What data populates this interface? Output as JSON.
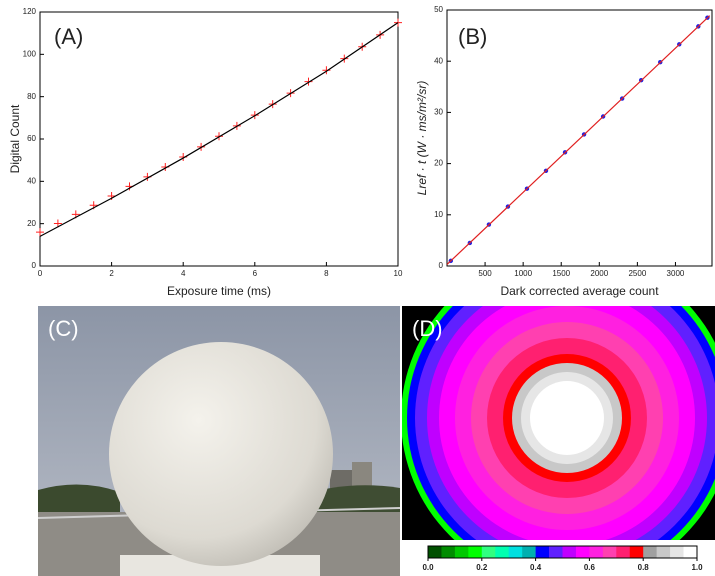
{
  "chart_data": [
    {
      "type": "scatter",
      "annotation": "(A)",
      "x_label": "Exposure time (ms)",
      "y_label": "Digital Count",
      "x": [
        0,
        0.5,
        1,
        1.5,
        2,
        2.5,
        3,
        3.5,
        4,
        4.5,
        5,
        5.5,
        6,
        6.5,
        7,
        7.5,
        8,
        8.5,
        9,
        9.5,
        10
      ],
      "values": [
        16,
        20.1,
        24.4,
        28.7,
        33.1,
        37.6,
        42.1,
        46.8,
        51.5,
        56.3,
        61.3,
        66.2,
        71.3,
        76.5,
        81.7,
        87.1,
        92.5,
        98.0,
        103.6,
        109.2,
        115
      ],
      "color": "#ff2020",
      "marker": "plus",
      "fit": {
        "x": [
          0,
          2,
          4,
          6,
          8,
          10
        ],
        "values": [
          14,
          32,
          51,
          71,
          92,
          115
        ],
        "color": "#000000"
      },
      "xlim": [
        0,
        10
      ],
      "ylim": [
        0,
        120
      ],
      "xticks": [
        0,
        2,
        4,
        6,
        8,
        10
      ],
      "yticks": [
        0,
        20,
        40,
        60,
        80,
        100,
        120
      ]
    },
    {
      "type": "scatter",
      "annotation": "(B)",
      "x_label": "Dark corrected average count",
      "y_label": "Lref · t (W · ms/m²/sr)",
      "x": [
        50,
        300,
        550,
        800,
        1050,
        1300,
        1550,
        1800,
        2050,
        2300,
        2550,
        2800,
        3050,
        3300,
        3420
      ],
      "values": [
        1.0,
        4.5,
        8.1,
        11.6,
        15.1,
        18.6,
        22.2,
        25.7,
        29.2,
        32.7,
        36.3,
        39.8,
        43.3,
        46.8,
        48.5
      ],
      "color": "#2020e0",
      "marker": "dot",
      "fit": {
        "x": [
          0,
          3450
        ],
        "values": [
          0.3,
          48.9
        ],
        "color": "#e02020"
      },
      "xlim": [
        0,
        3480
      ],
      "ylim": [
        0,
        50
      ],
      "xticks": [
        500,
        1000,
        1500,
        2000,
        2500,
        3000
      ],
      "yticks": [
        0,
        10,
        20,
        30,
        40,
        50
      ]
    },
    {
      "type": "colorbar",
      "xlim": [
        0,
        1
      ],
      "xticks": [
        {
          "value": 0,
          "label": "0.0"
        },
        {
          "value": 0.2,
          "label": "0.2"
        },
        {
          "value": 0.4,
          "label": "0.4"
        },
        {
          "value": 0.6,
          "label": "0.6"
        },
        {
          "value": 0.8,
          "label": "0.8"
        },
        {
          "value": 1,
          "label": "1.0"
        }
      ],
      "colors": [
        "#005000",
        "#008c00",
        "#00c800",
        "#00ff00",
        "#30ff80",
        "#00ffb0",
        "#00e0e0",
        "#00b0b0",
        "#0000ff",
        "#6020ff",
        "#c000ff",
        "#ff00ff",
        "#ff20e0",
        "#ff40b0",
        "#ff2070",
        "#ff0000",
        "#a0a0a0",
        "#c8c8c8",
        "#e6e6e6",
        "#ffffff"
      ]
    }
  ],
  "images": [
    {
      "label": "(C)"
    },
    {
      "label": "(D)"
    }
  ]
}
